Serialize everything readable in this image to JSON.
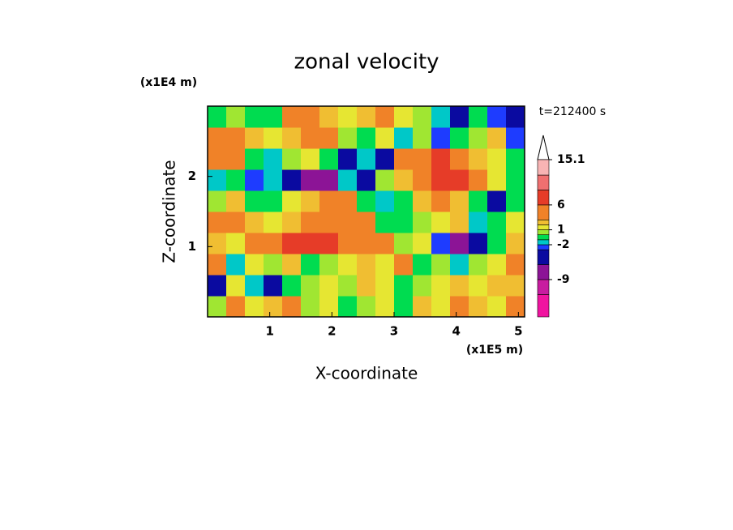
{
  "chart_data": {
    "type": "contour",
    "title": "zonal velocity",
    "xlabel": "X-coordinate",
    "ylabel": "Z-coordinate",
    "x_unit": "(x1E5 m)",
    "y_unit": "(x1E4 m)",
    "time_label": "t=212400 s",
    "xlim": [
      0,
      5.1
    ],
    "ylim": [
      0,
      3
    ],
    "xticks": [
      1,
      2,
      3,
      4,
      5
    ],
    "yticks": [
      1,
      2
    ],
    "x": [
      0.15,
      0.45,
      0.75,
      1.05,
      1.35,
      1.65,
      1.95,
      2.25,
      2.55,
      2.85,
      3.15,
      3.45,
      3.75,
      4.05,
      4.35,
      4.65,
      4.95
    ],
    "y": [
      0.15,
      0.45,
      0.75,
      1.05,
      1.35,
      1.65,
      1.95,
      2.25,
      2.55,
      2.85
    ],
    "z": [
      [
        0,
        3,
        1,
        2,
        3,
        0,
        1,
        -1,
        0,
        1,
        -1,
        2,
        1,
        3,
        2,
        1,
        3
      ],
      [
        -4,
        1,
        -2,
        -4,
        -1,
        0,
        1,
        0,
        2,
        1,
        -1,
        0,
        1,
        2,
        1,
        2,
        2
      ],
      [
        5,
        -2,
        1,
        0,
        2,
        -1,
        0,
        1,
        2,
        1,
        3,
        -1,
        0,
        -2,
        0,
        1,
        3
      ],
      [
        2,
        1,
        3,
        5,
        6,
        7,
        6,
        3,
        4,
        3,
        0,
        1,
        -3,
        -7,
        -6,
        -1,
        2
      ],
      [
        3,
        4,
        2,
        1,
        2,
        3,
        4,
        5,
        4,
        -1,
        -1,
        0,
        1,
        2,
        -2,
        -1,
        1
      ],
      [
        0,
        2,
        -1,
        -1,
        1,
        2,
        4,
        3,
        -1,
        -2,
        -1,
        2,
        3,
        2,
        -1,
        -4,
        -1
      ],
      [
        -2,
        -1,
        -3,
        -2,
        -4,
        -7,
        -8,
        -2,
        -5,
        0,
        2,
        4,
        8,
        6,
        3,
        1,
        -1
      ],
      [
        4,
        3,
        -1,
        -2,
        0,
        1,
        -1,
        -6,
        -2,
        -5,
        3,
        4,
        6,
        5,
        2,
        1,
        -1
      ],
      [
        3,
        4,
        2,
        1,
        2,
        4,
        3,
        0,
        -1,
        1,
        -2,
        0,
        -3,
        -1,
        0,
        2,
        -3
      ],
      [
        -1,
        0.5,
        -1,
        -0.5,
        3,
        4,
        2,
        1.5,
        2,
        4,
        1,
        0,
        -2,
        -4,
        -1,
        -3,
        -4
      ]
    ],
    "levels": [
      -16.5,
      -12,
      -9,
      -6,
      -3,
      -2,
      -1,
      0,
      1,
      2,
      3,
      6,
      9,
      12,
      15.1
    ],
    "colors": [
      "#f014a0",
      "#c81ca0",
      "#8c1496",
      "#0a0aa0",
      "#1e3cff",
      "#00c8c8",
      "#00dc50",
      "#a0e632",
      "#e6e632",
      "#f0be32",
      "#f08228",
      "#e63c28",
      "#f07070",
      "#f8b4b4"
    ],
    "cbticks": [
      15.1,
      6,
      1,
      -2,
      -9
    ]
  }
}
